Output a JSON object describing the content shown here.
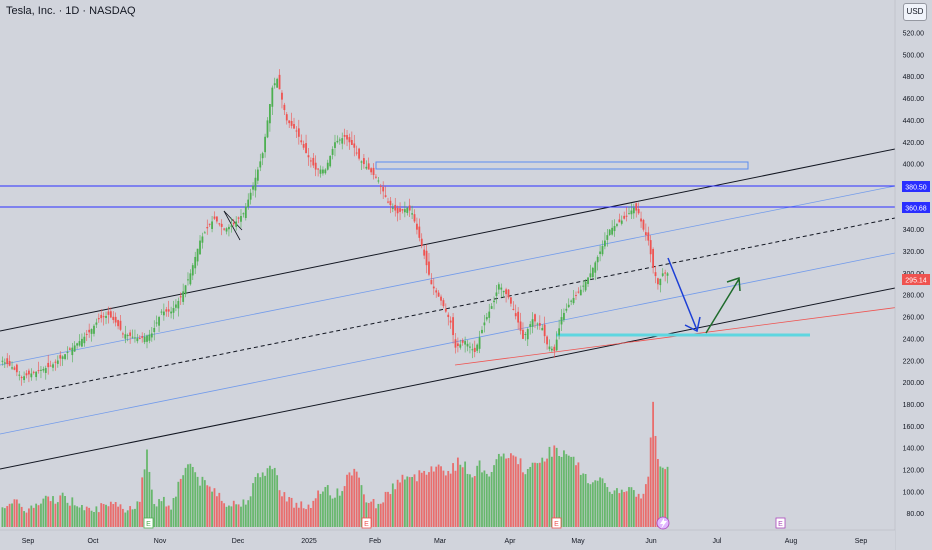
{
  "header": {
    "symbol_title": "Tesla, Inc. · 1D · NASDAQ",
    "currency_button": "USD"
  },
  "colors": {
    "background": "#d1d4dc",
    "up": "#4caf50",
    "down": "#ef5350",
    "up_volume": "#4caf50",
    "down_volume": "#ef5350",
    "level_line": "#2a2eff",
    "channel": "#131722",
    "inner_channel": "#5b8def",
    "support": "#5ed6e0",
    "down_arrow": "#1c3fd6",
    "up_arrow": "#1e6b2b",
    "trend_red": "#ef5350"
  },
  "chart_data": {
    "type": "candlestick",
    "y_axis": {
      "ticks": [
        "520.00",
        "500.00",
        "480.00",
        "460.00",
        "440.00",
        "420.00",
        "400.00",
        "380.00",
        "360.00",
        "340.00",
        "320.00",
        "300.00",
        "280.00",
        "260.00",
        "240.00",
        "220.00",
        "200.00",
        "180.00",
        "160.00",
        "140.00",
        "120.00",
        "100.00",
        "80.00"
      ],
      "price_ylim": [
        200,
        530
      ]
    },
    "x_axis": {
      "ticks": [
        "Sep",
        "Oct",
        "Nov",
        "Dec",
        "2025",
        "Feb",
        "Mar",
        "Apr",
        "May",
        "Jun",
        "Jul",
        "Aug",
        "Sep"
      ]
    },
    "last_price": "295.14",
    "horizontal_levels": [
      {
        "label": "380.50",
        "value": 380.5
      },
      {
        "label": "360.68",
        "value": 360.68
      }
    ],
    "support_zone": 245,
    "resistance_box": [
      397,
      402
    ],
    "price_path": [
      [
        0,
        220
      ],
      [
        4,
        214
      ],
      [
        8,
        205
      ],
      [
        14,
        210
      ],
      [
        20,
        215
      ],
      [
        24,
        222
      ],
      [
        28,
        230
      ],
      [
        32,
        238
      ],
      [
        36,
        246
      ],
      [
        40,
        258
      ],
      [
        44,
        262
      ],
      [
        47,
        255
      ],
      [
        50,
        245
      ],
      [
        54,
        242
      ],
      [
        57,
        240
      ],
      [
        62,
        245
      ],
      [
        66,
        265
      ],
      [
        70,
        265
      ],
      [
        74,
        278
      ],
      [
        78,
        300
      ],
      [
        82,
        330
      ],
      [
        86,
        345
      ],
      [
        88,
        350
      ],
      [
        92,
        340
      ],
      [
        96,
        345
      ],
      [
        100,
        355
      ],
      [
        104,
        380
      ],
      [
        108,
        410
      ],
      [
        112,
        470
      ],
      [
        114,
        478
      ],
      [
        118,
        440
      ],
      [
        122,
        430
      ],
      [
        126,
        410
      ],
      [
        130,
        395
      ],
      [
        134,
        395
      ],
      [
        138,
        420
      ],
      [
        142,
        425
      ],
      [
        146,
        415
      ],
      [
        148,
        405
      ],
      [
        152,
        395
      ],
      [
        156,
        385
      ],
      [
        160,
        365
      ],
      [
        164,
        355
      ],
      [
        168,
        360
      ],
      [
        170,
        355
      ],
      [
        174,
        325
      ],
      [
        178,
        290
      ],
      [
        182,
        275
      ],
      [
        186,
        255
      ],
      [
        188,
        232
      ],
      [
        192,
        238
      ],
      [
        196,
        228
      ],
      [
        200,
        255
      ],
      [
        204,
        275
      ],
      [
        206,
        290
      ],
      [
        210,
        278
      ],
      [
        214,
        255
      ],
      [
        216,
        240
      ],
      [
        220,
        258
      ],
      [
        224,
        250
      ],
      [
        226,
        235
      ],
      [
        229,
        229
      ],
      [
        232,
        260
      ],
      [
        236,
        275
      ],
      [
        240,
        285
      ],
      [
        244,
        300
      ],
      [
        248,
        320
      ],
      [
        252,
        340
      ],
      [
        255,
        345
      ],
      [
        258,
        350
      ],
      [
        262,
        360
      ],
      [
        264,
        355
      ],
      [
        266,
        340
      ],
      [
        268,
        330
      ],
      [
        270,
        305
      ],
      [
        272,
        290
      ],
      [
        274,
        300
      ],
      [
        276,
        300
      ]
    ],
    "volume_path": [
      [
        0,
        100
      ],
      [
        6,
        98
      ],
      [
        12,
        95
      ],
      [
        18,
        102
      ],
      [
        24,
        105
      ],
      [
        30,
        100
      ],
      [
        36,
        98
      ],
      [
        42,
        95
      ],
      [
        48,
        97
      ],
      [
        54,
        96
      ],
      [
        57,
        105
      ],
      [
        60,
        140
      ],
      [
        63,
        100
      ],
      [
        66,
        103
      ],
      [
        70,
        98
      ],
      [
        74,
        120
      ],
      [
        76,
        130
      ],
      [
        78,
        132
      ],
      [
        82,
        118
      ],
      [
        86,
        112
      ],
      [
        90,
        108
      ],
      [
        94,
        98
      ],
      [
        100,
        100
      ],
      [
        106,
        120
      ],
      [
        110,
        128
      ],
      [
        112,
        130
      ],
      [
        116,
        110
      ],
      [
        120,
        100
      ],
      [
        124,
        98
      ],
      [
        128,
        95
      ],
      [
        134,
        115
      ],
      [
        138,
        105
      ],
      [
        142,
        115
      ],
      [
        146,
        130
      ],
      [
        150,
        105
      ],
      [
        156,
        98
      ],
      [
        160,
        108
      ],
      [
        166,
        122
      ],
      [
        170,
        118
      ],
      [
        174,
        125
      ],
      [
        178,
        130
      ],
      [
        182,
        128
      ],
      [
        186,
        126
      ],
      [
        190,
        135
      ],
      [
        194,
        123
      ],
      [
        198,
        130
      ],
      [
        202,
        125
      ],
      [
        206,
        135
      ],
      [
        210,
        140
      ],
      [
        214,
        134
      ],
      [
        218,
        125
      ],
      [
        222,
        132
      ],
      [
        226,
        140
      ],
      [
        230,
        145
      ],
      [
        234,
        137
      ],
      [
        238,
        132
      ],
      [
        242,
        120
      ],
      [
        246,
        118
      ],
      [
        250,
        114
      ],
      [
        256,
        108
      ],
      [
        260,
        110
      ],
      [
        264,
        105
      ],
      [
        268,
        117
      ],
      [
        270,
        185
      ],
      [
        272,
        132
      ],
      [
        276,
        130
      ]
    ],
    "earnings_markers": [
      "E",
      "E",
      "E",
      "E",
      "E"
    ]
  }
}
